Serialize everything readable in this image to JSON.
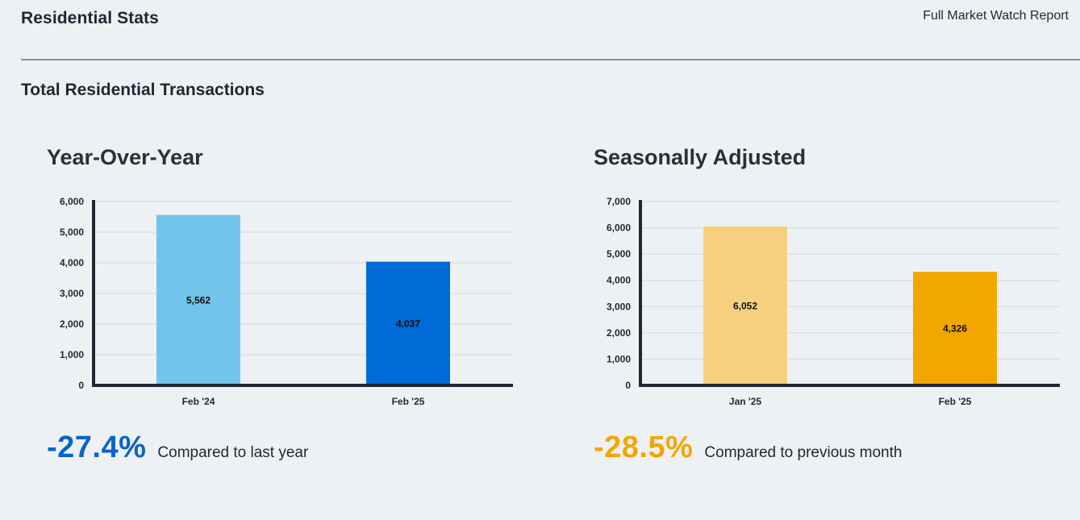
{
  "header": {
    "title": "Residential Stats",
    "report_link": "Full Market Watch Report"
  },
  "section": {
    "title": "Total Residential Transactions"
  },
  "colors": {
    "yoy_prior": "#71c4ea",
    "yoy_current": "#006ad6",
    "sa_prior": "#f6d07f",
    "sa_current": "#f2a600",
    "yoy_change": "#0a64c8",
    "sa_change": "#f2a600",
    "axis": "#1f2733",
    "grid": "#d3d8dd"
  },
  "panels": {
    "yoy": {
      "title": "Year-Over-Year",
      "change": "-27.4%",
      "caption": "Compared to last year"
    },
    "sa": {
      "title": "Seasonally Adjusted",
      "change": "-28.5%",
      "caption": "Compared to previous month"
    }
  },
  "chart_data": [
    {
      "type": "bar",
      "title": "Year-Over-Year",
      "categories": [
        "Feb '24",
        "Feb '25"
      ],
      "values": [
        5562,
        4037
      ],
      "value_labels": [
        "5,562",
        "4,037"
      ],
      "yticks": [
        "0",
        "1,000",
        "2,000",
        "3,000",
        "4,000",
        "5,000",
        "6,000"
      ],
      "ylim": [
        0,
        6000
      ],
      "grid": true
    },
    {
      "type": "bar",
      "title": "Seasonally Adjusted",
      "categories": [
        "Jan '25",
        "Feb '25"
      ],
      "values": [
        6052,
        4326
      ],
      "value_labels": [
        "6,052",
        "4,326"
      ],
      "yticks": [
        "0",
        "1,000",
        "2,000",
        "3,000",
        "4,000",
        "5,000",
        "6,000",
        "7,000"
      ],
      "ylim": [
        0,
        7000
      ],
      "grid": true
    }
  ]
}
